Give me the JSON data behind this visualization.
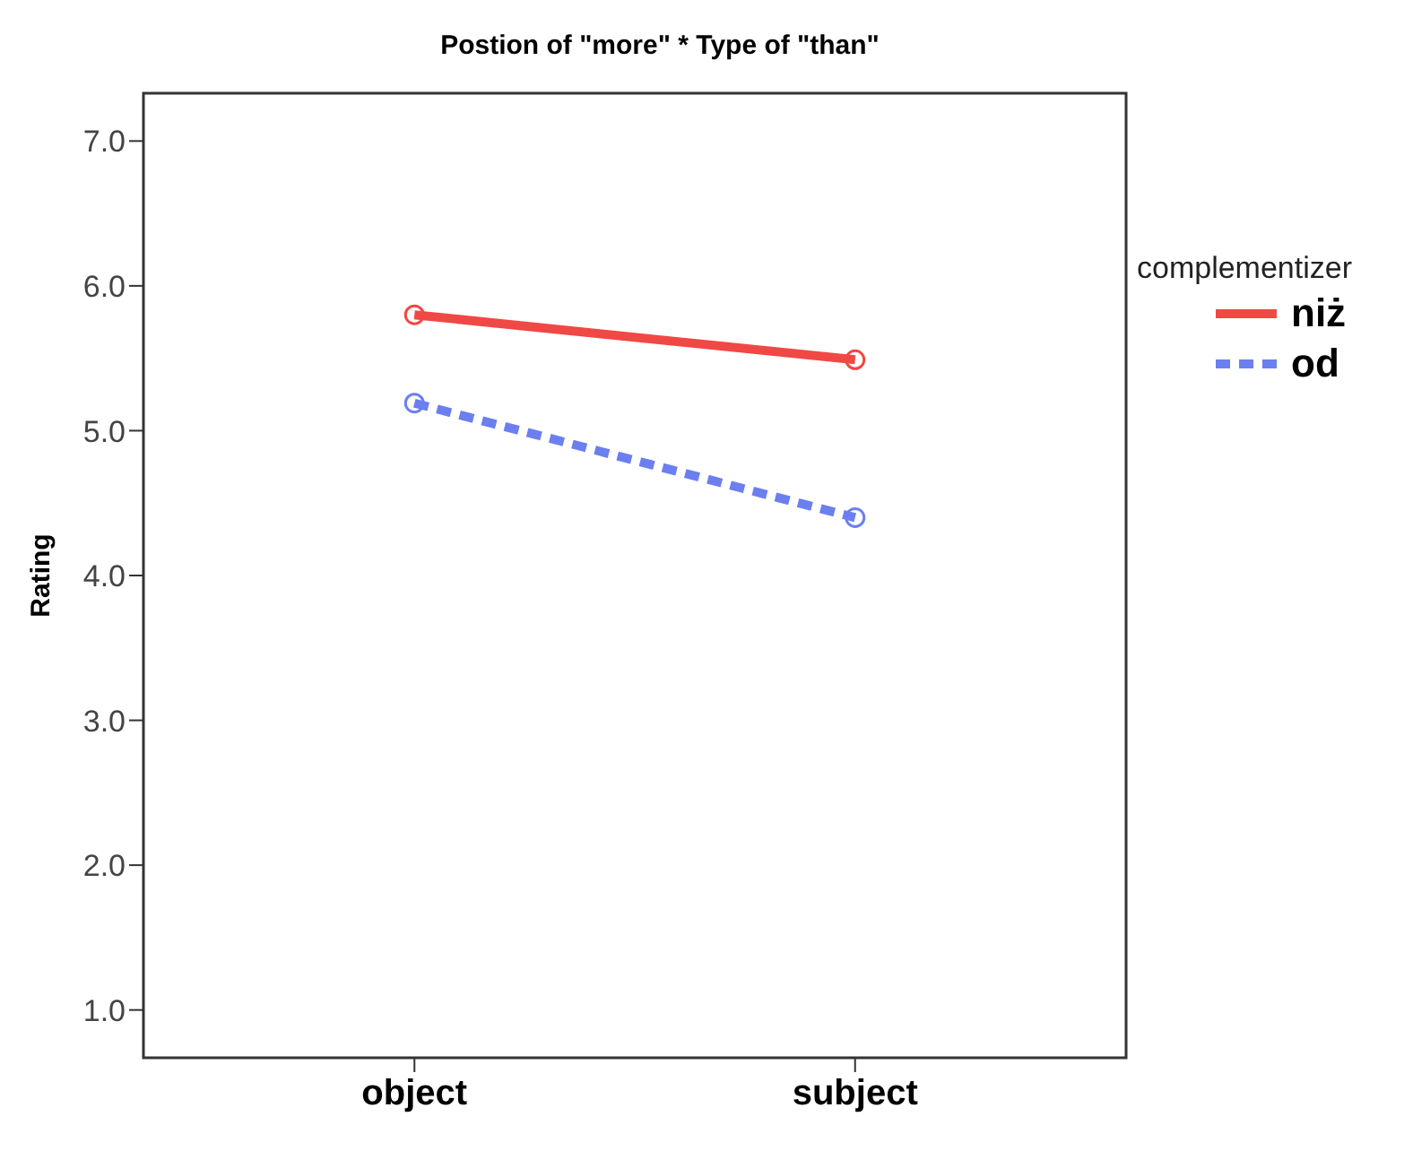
{
  "chart_data": {
    "type": "line",
    "title": "Postion of \"more\" * Type of \"than\"",
    "ylabel": "Rating",
    "legend_title": "complementizer",
    "categories": [
      "object",
      "subject"
    ],
    "series": [
      {
        "name": "niż",
        "color": "#f04844",
        "values": [
          5.8,
          5.49
        ],
        "line_style": "solid"
      },
      {
        "name": "od",
        "color": "#6b7ff0",
        "values": [
          5.19,
          4.4
        ],
        "line_style": "dashed"
      }
    ],
    "ylim": [
      0.67,
      7.33
    ],
    "yticks": [
      {
        "value": 1,
        "label": "1.0"
      },
      {
        "value": 2,
        "label": "2.0"
      },
      {
        "value": 3,
        "label": "3.0"
      },
      {
        "value": 4,
        "label": "4.0"
      },
      {
        "value": 5,
        "label": "5.0"
      },
      {
        "value": 6,
        "label": "6.0"
      },
      {
        "value": 7,
        "label": "7.0"
      }
    ],
    "grid": false,
    "legend": "right",
    "marker": "circle"
  }
}
